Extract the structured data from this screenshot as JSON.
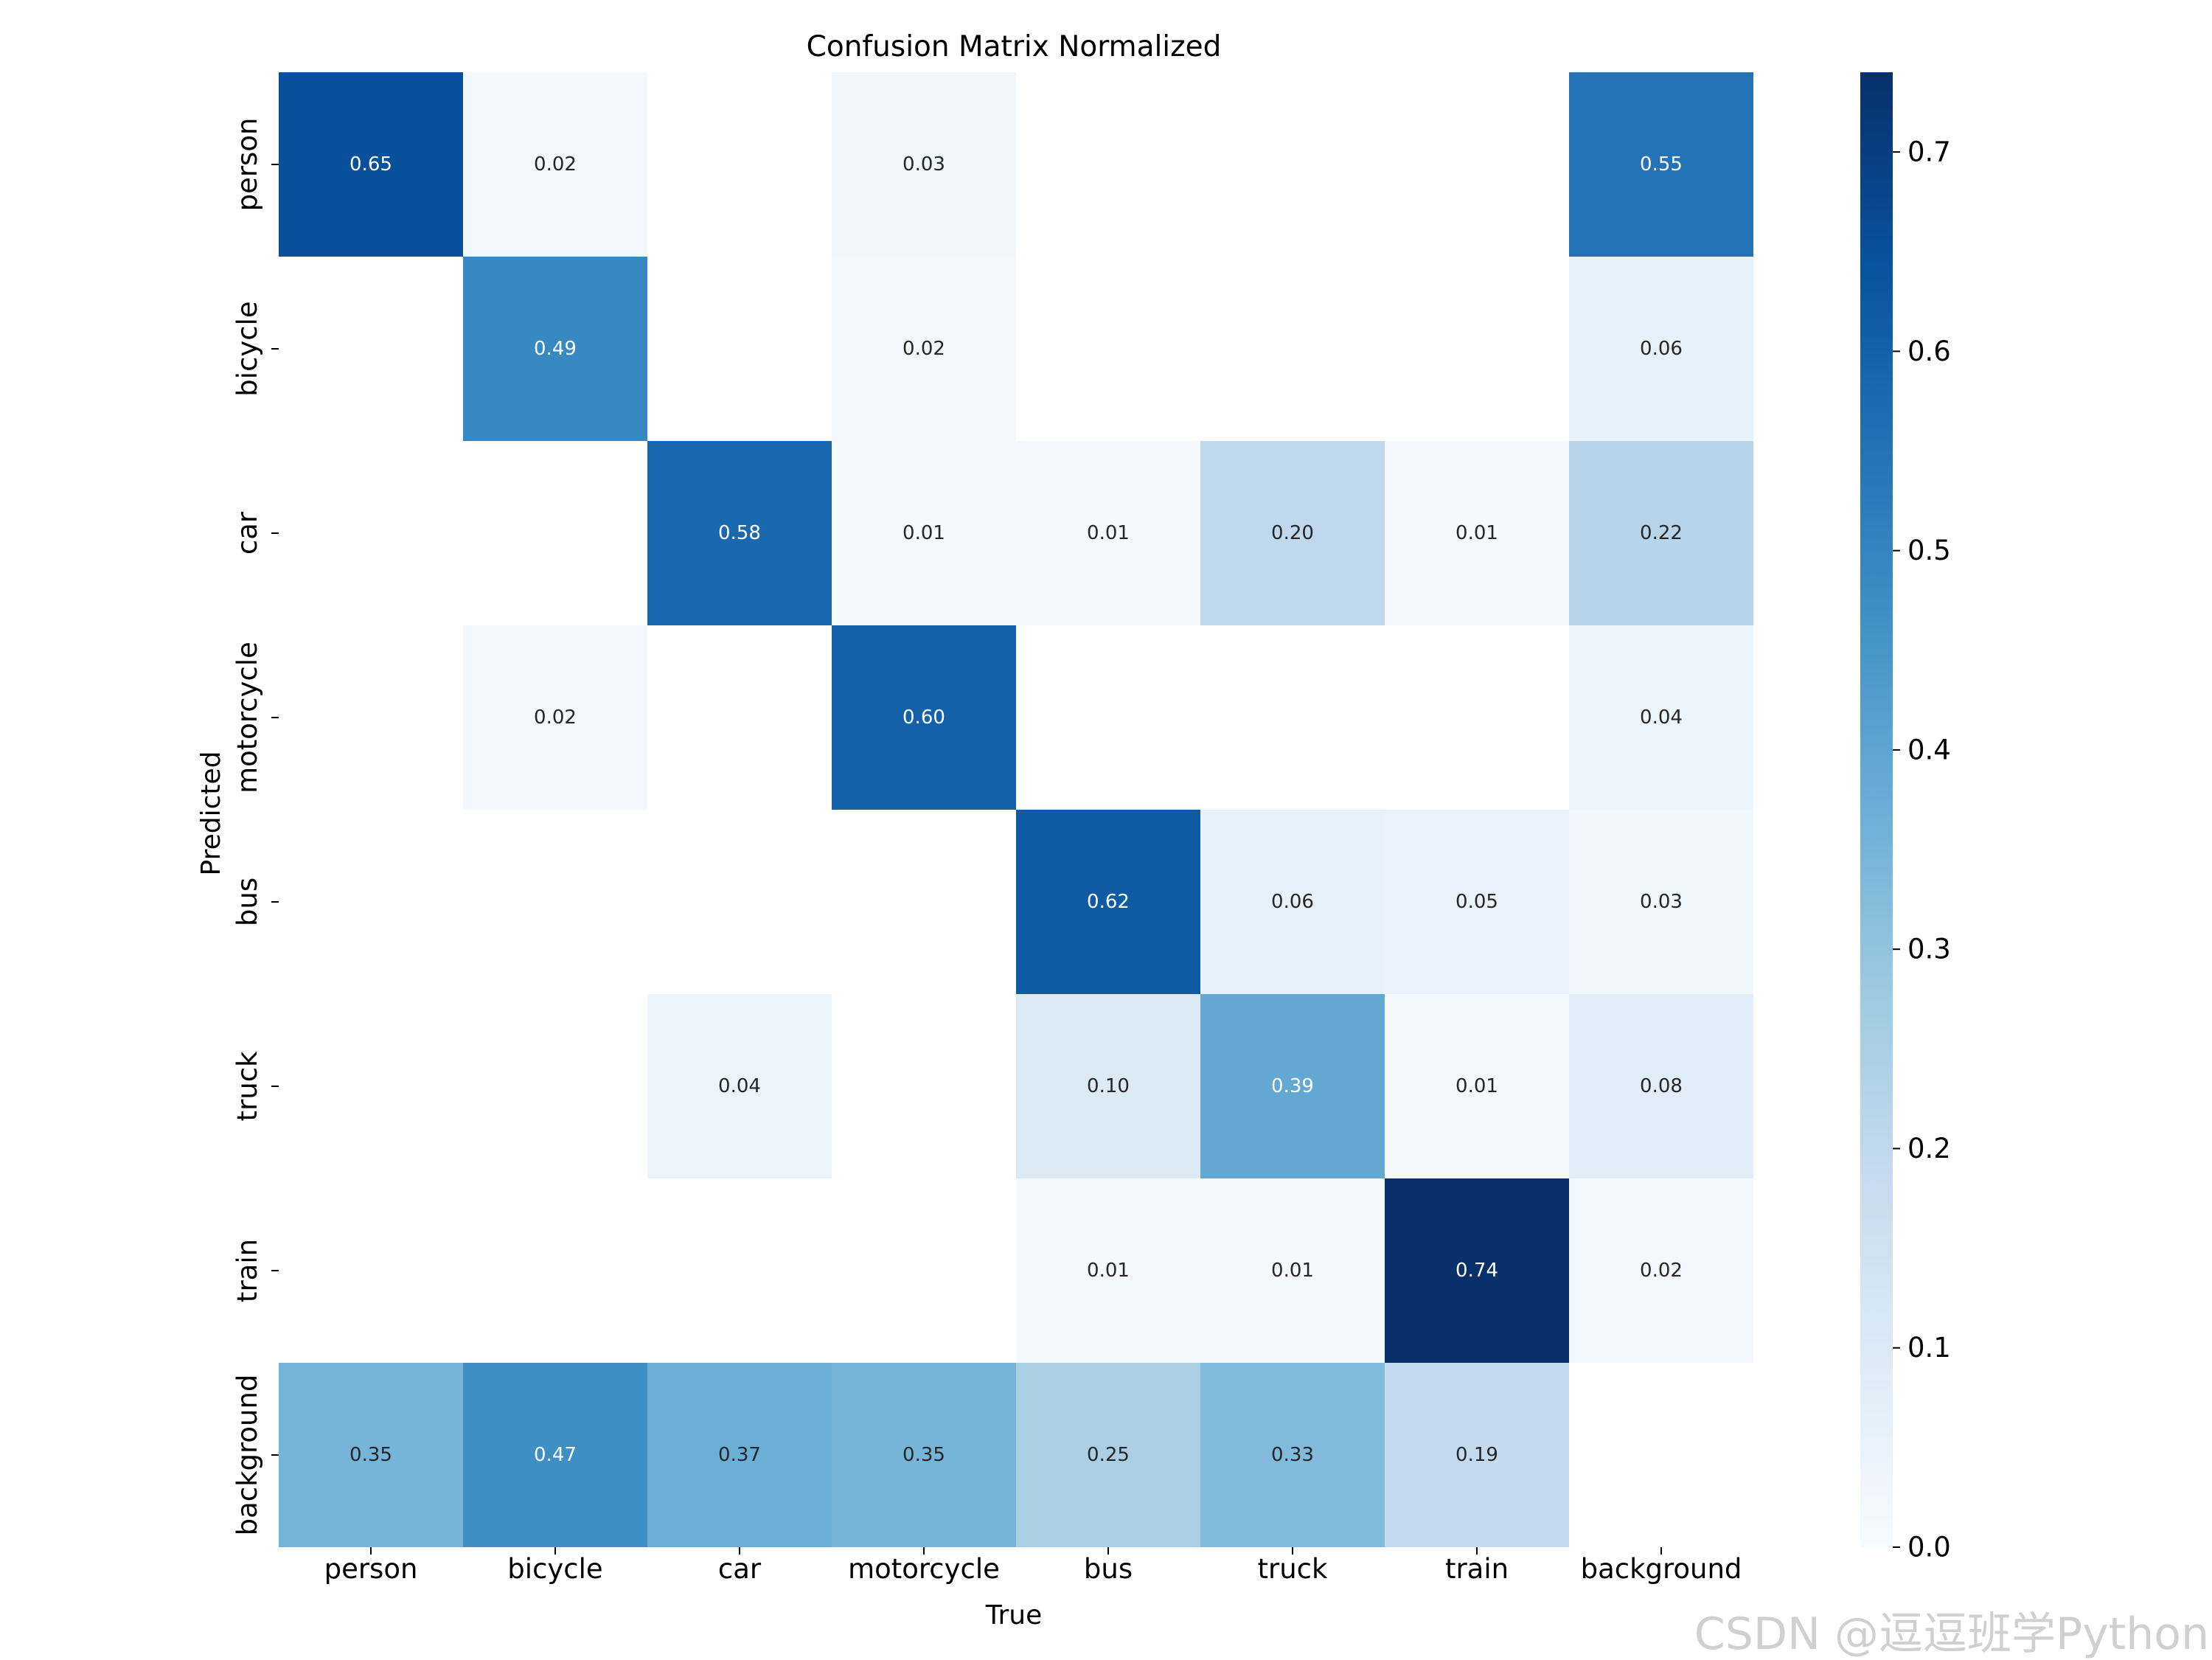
{
  "chart_data": {
    "type": "heatmap",
    "title": "Confusion Matrix Normalized",
    "xlabel": "True",
    "ylabel": "Predicted",
    "x_categories": [
      "person",
      "bicycle",
      "car",
      "motorcycle",
      "bus",
      "truck",
      "train",
      "background"
    ],
    "y_categories": [
      "person",
      "bicycle",
      "car",
      "motorcycle",
      "bus",
      "truck",
      "train",
      "background"
    ],
    "matrix": [
      [
        0.65,
        0.02,
        null,
        0.03,
        null,
        null,
        null,
        0.55
      ],
      [
        null,
        0.49,
        null,
        0.02,
        null,
        null,
        null,
        0.06
      ],
      [
        null,
        null,
        0.58,
        0.01,
        0.01,
        0.2,
        0.01,
        0.22
      ],
      [
        null,
        0.02,
        null,
        0.6,
        null,
        null,
        null,
        0.04
      ],
      [
        null,
        null,
        null,
        null,
        0.62,
        0.06,
        0.05,
        0.03
      ],
      [
        null,
        null,
        0.04,
        null,
        0.1,
        0.39,
        0.01,
        0.08
      ],
      [
        null,
        null,
        null,
        null,
        0.01,
        0.01,
        0.74,
        0.02
      ],
      [
        0.35,
        0.47,
        0.37,
        0.35,
        0.25,
        0.33,
        0.19,
        null
      ]
    ],
    "value_format": "2-decimal",
    "colormap": "Blues",
    "colorbar": {
      "range": [
        0.0,
        0.74
      ],
      "ticks": [
        0.0,
        0.1,
        0.2,
        0.3,
        0.4,
        0.5,
        0.6,
        0.7
      ],
      "tick_labels": [
        "0.0",
        "0.1",
        "0.2",
        "0.3",
        "0.4",
        "0.5",
        "0.6",
        "0.7"
      ]
    }
  },
  "colors": {
    "text_dark": "#262626",
    "text_light": "#ffffff",
    "axis": "#000000",
    "blues": [
      "#f7fbff",
      "#deebf7",
      "#c6dbef",
      "#9ecae1",
      "#6baed6",
      "#4292c6",
      "#2171b5",
      "#08519c",
      "#08306b"
    ]
  },
  "watermark": "CSDN @逗逗班学Python"
}
